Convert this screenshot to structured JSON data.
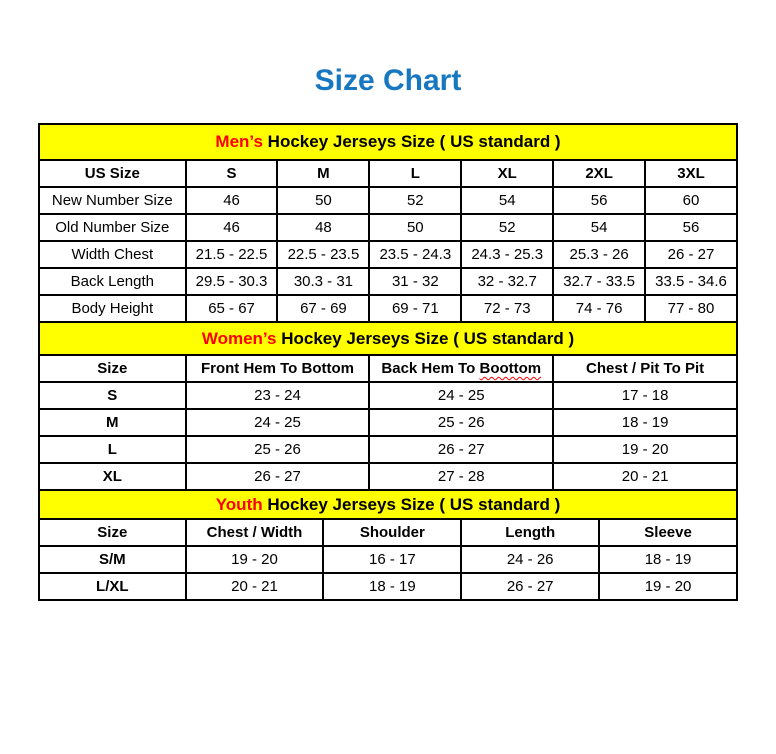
{
  "page": {
    "title": "Size Chart",
    "title_color": "#1777c0",
    "background": "#ffffff"
  },
  "colors": {
    "section_band_bg": "#ffff00",
    "accent_red": "#ff0000",
    "title_blue": "#1777c0",
    "border": "#000000"
  },
  "sections": [
    {
      "id": "mens",
      "accent": "Men’s",
      "heading_rest": " Hockey Jerseys Size ( US standard )",
      "columns": [
        "US Size",
        "S",
        "M",
        "L",
        "XL",
        "2XL",
        "3XL"
      ],
      "rows": [
        [
          "New Number Size",
          "46",
          "50",
          "52",
          "54",
          "56",
          "60"
        ],
        [
          "Old Number Size",
          "46",
          "48",
          "50",
          "52",
          "54",
          "56"
        ],
        [
          "Width Chest",
          "21.5 - 22.5",
          "22.5 - 23.5",
          "23.5 - 24.3",
          "24.3 - 25.3",
          "25.3 - 26",
          "26 - 27"
        ],
        [
          "Back Length",
          "29.5 - 30.3",
          "30.3 - 31",
          "31 - 32",
          "32 - 32.7",
          "32.7 - 33.5",
          "33.5 - 34.6"
        ],
        [
          "Body Height",
          "65 - 67",
          "67 - 69",
          "69 - 71",
          "72 - 73",
          "74 - 76",
          "77 - 80"
        ]
      ]
    },
    {
      "id": "womens",
      "accent": "Women’s",
      "heading_rest": " Hockey Jerseys Size ( US standard )",
      "columns": [
        "Size",
        "Front Hem To Bottom",
        {
          "prefix": "Back Hem To ",
          "squiggle": "Boottom"
        },
        "Chest / Pit To Pit"
      ],
      "rows": [
        [
          "S",
          "23 - 24",
          "24 - 25",
          "17 - 18"
        ],
        [
          "M",
          "24 - 25",
          "25 - 26",
          "18 - 19"
        ],
        [
          "L",
          "25 - 26",
          "26 - 27",
          "19 - 20"
        ],
        [
          "XL",
          "26 - 27",
          "27 - 28",
          "20 - 21"
        ]
      ]
    },
    {
      "id": "youth",
      "accent": "Youth",
      "heading_rest": " Hockey Jerseys Size ( US standard )",
      "columns": [
        "Size",
        "Chest / Width",
        "Shoulder",
        "Length",
        "Sleeve"
      ],
      "rows": [
        [
          "S/M",
          "19 - 20",
          "16 - 17",
          "24 - 26",
          "18 - 19"
        ],
        [
          "L/XL",
          "20 - 21",
          "18 - 19",
          "26 - 27",
          "19 - 20"
        ]
      ]
    }
  ]
}
